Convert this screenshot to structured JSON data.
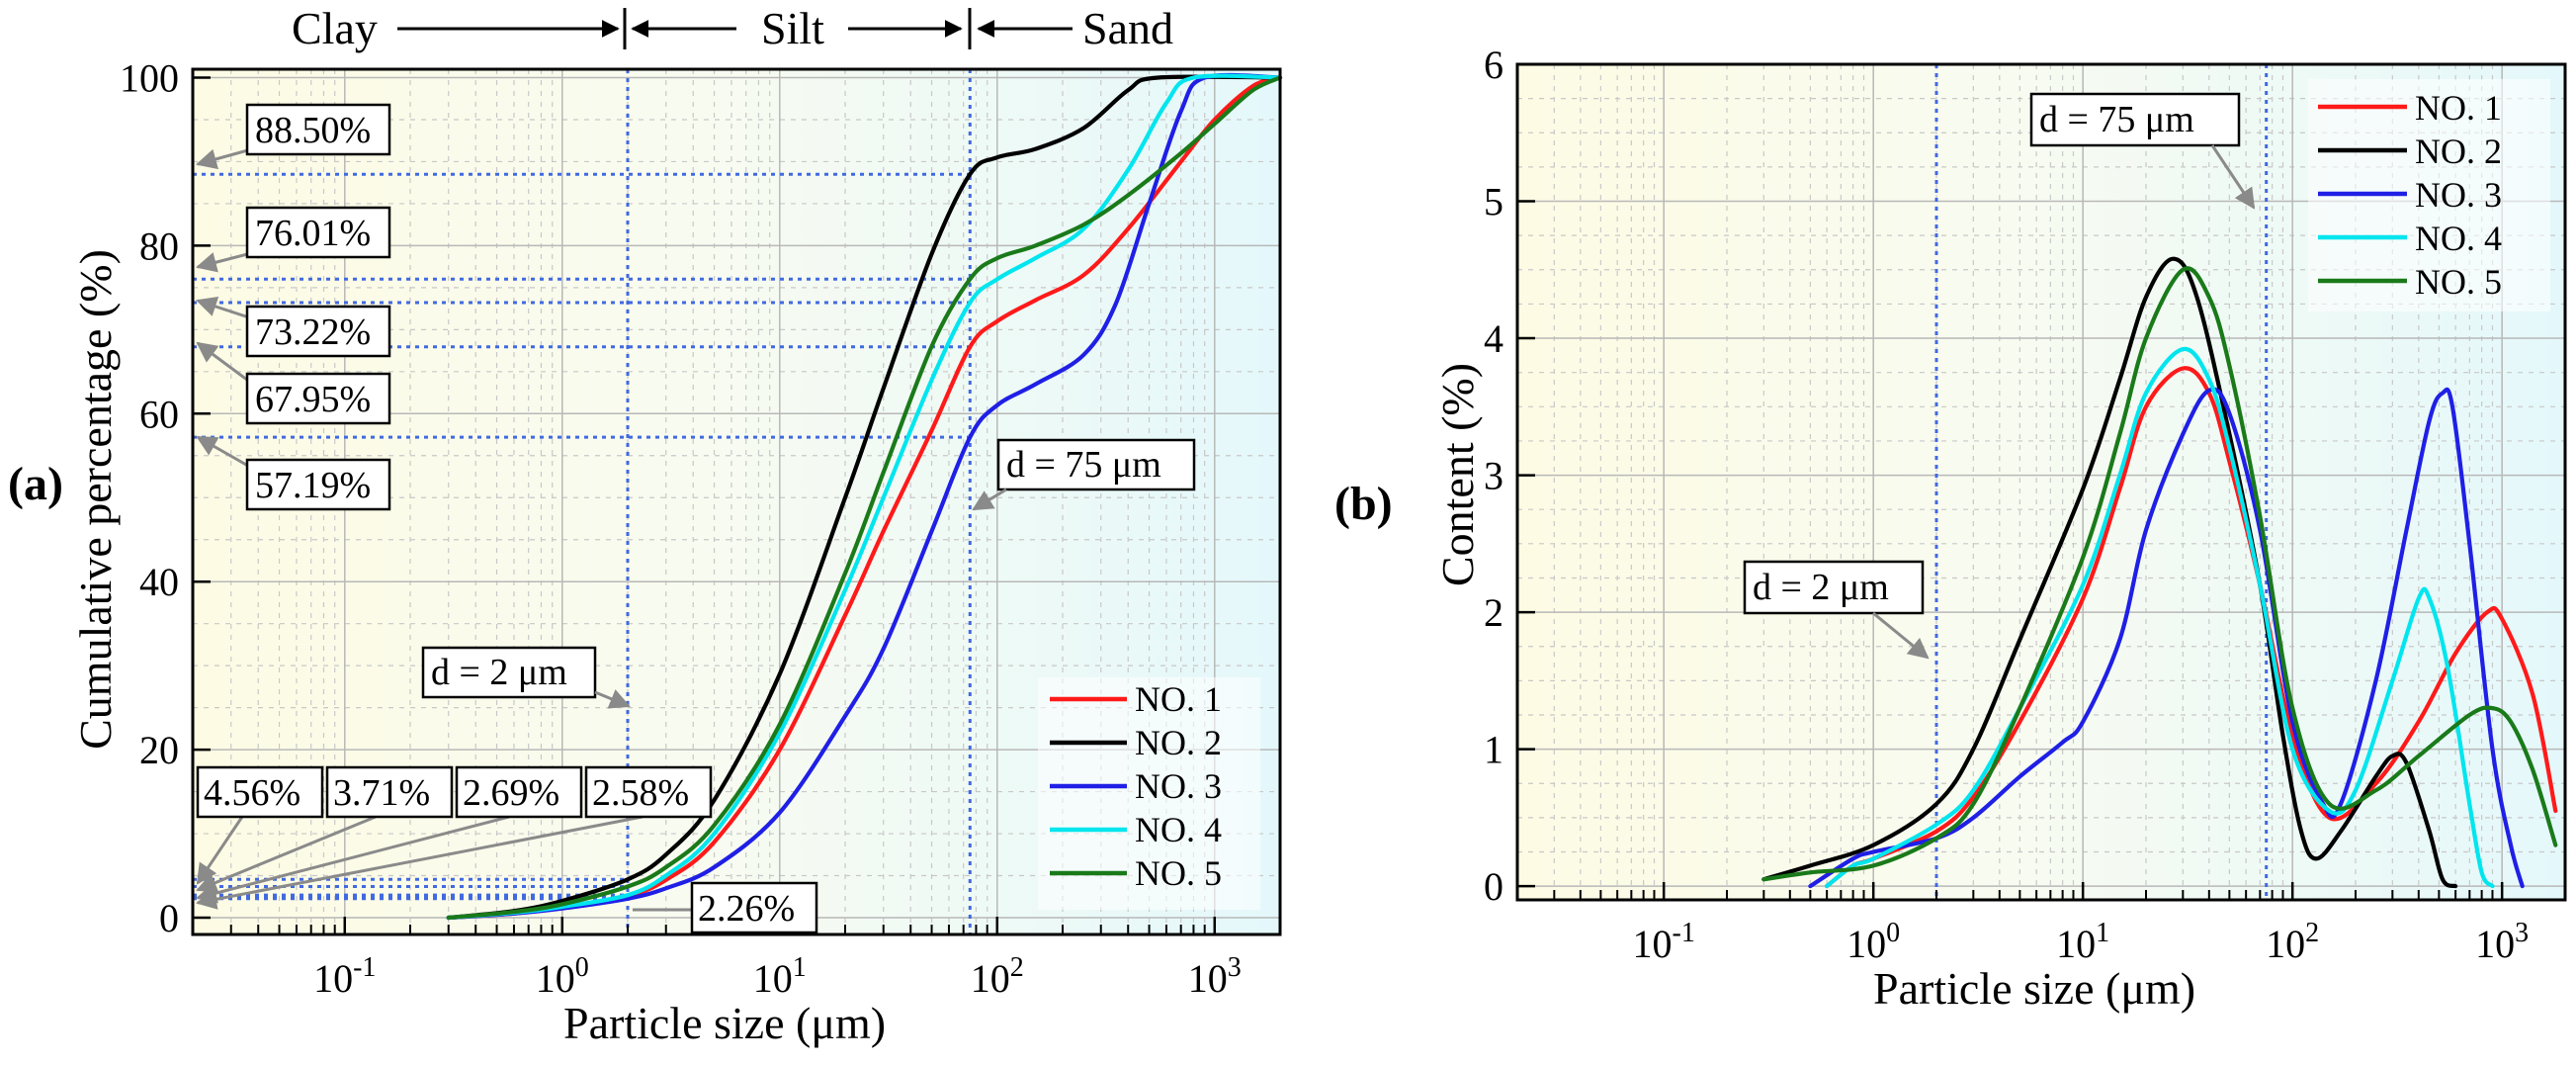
{
  "colors": {
    "no1": "#ff1a1a",
    "no2": "#000000",
    "no3": "#1f1fe6",
    "no4": "#00e5ee",
    "no5": "#1a7a1a",
    "reference": "#4169e1"
  },
  "chart_data": [
    {
      "panel": "(a)",
      "type": "line",
      "xscale": "log",
      "xlabel": "Particle size (μm)",
      "ylabel": "Cumulative percentage (%)",
      "xlim": [
        0.02,
        2000
      ],
      "ylim": [
        -2,
        101
      ],
      "x_ticks": [
        {
          "value": 0.1,
          "base": "10",
          "exp": "-1"
        },
        {
          "value": 1,
          "base": "10",
          "exp": "0"
        },
        {
          "value": 10,
          "base": "10",
          "exp": "1"
        },
        {
          "value": 100,
          "base": "10",
          "exp": "2"
        },
        {
          "value": 1000,
          "base": "10",
          "exp": "3"
        }
      ],
      "y_ticks": [
        "0",
        "20",
        "40",
        "60",
        "80",
        "100"
      ],
      "y_tick_values": [
        0,
        20,
        40,
        60,
        80,
        100
      ],
      "zones": [
        "Clay",
        "Silt",
        "Sand"
      ],
      "zone_bounds": [
        2,
        75
      ],
      "reference_lines": [
        {
          "x": 2,
          "label": "d = 2 μm"
        },
        {
          "x": 75,
          "label": "d = 75 μm"
        }
      ],
      "passing_at_75um": [
        {
          "series": "NO. 2",
          "value": 88.5,
          "label": "88.50%"
        },
        {
          "series": "NO. 5",
          "value": 76.01,
          "label": "76.01%"
        },
        {
          "series": "NO. 4",
          "value": 73.22,
          "label": "73.22%"
        },
        {
          "series": "NO. 1",
          "value": 67.95,
          "label": "67.95%"
        },
        {
          "series": "NO. 3",
          "value": 57.19,
          "label": "57.19%"
        }
      ],
      "passing_at_2um": [
        {
          "series": "NO. 2",
          "value": 4.56,
          "label": "4.56%"
        },
        {
          "series": "NO. 5",
          "value": 3.71,
          "label": "3.71%"
        },
        {
          "series": "NO. 4",
          "value": 2.69,
          "label": "2.69%"
        },
        {
          "series": "NO. 1",
          "value": 2.58,
          "label": "2.58%"
        },
        {
          "series": "NO. 3",
          "value": 2.26,
          "label": "2.26%"
        }
      ],
      "legend": [
        "NO. 1",
        "NO. 2",
        "NO. 3",
        "NO. 4",
        "NO. 5"
      ],
      "series": [
        {
          "name": "NO. 1",
          "color_key": "no1",
          "points": [
            [
              0.3,
              0
            ],
            [
              0.6,
              0.5
            ],
            [
              1,
              1.2
            ],
            [
              2,
              2.58
            ],
            [
              3,
              4.5
            ],
            [
              5,
              9
            ],
            [
              10,
              20
            ],
            [
              20,
              36
            ],
            [
              30,
              46
            ],
            [
              50,
              58
            ],
            [
              75,
              67.95
            ],
            [
              100,
              71
            ],
            [
              150,
              73.5
            ],
            [
              250,
              76.5
            ],
            [
              400,
              82
            ],
            [
              700,
              90
            ],
            [
              1000,
              95
            ],
            [
              1500,
              99
            ],
            [
              2000,
              100
            ]
          ]
        },
        {
          "name": "NO. 2",
          "color_key": "no2",
          "points": [
            [
              0.3,
              0
            ],
            [
              0.6,
              0.8
            ],
            [
              1,
              2
            ],
            [
              2,
              4.56
            ],
            [
              3,
              7.5
            ],
            [
              5,
              14
            ],
            [
              10,
              29
            ],
            [
              20,
              50
            ],
            [
              30,
              63
            ],
            [
              50,
              79
            ],
            [
              75,
              88.5
            ],
            [
              100,
              90.5
            ],
            [
              150,
              91.5
            ],
            [
              250,
              94
            ],
            [
              400,
              98.5
            ],
            [
              550,
              100
            ],
            [
              2000,
              100
            ]
          ]
        },
        {
          "name": "NO. 3",
          "color_key": "no3",
          "points": [
            [
              0.3,
              0
            ],
            [
              0.6,
              0.5
            ],
            [
              1,
              1.1
            ],
            [
              2,
              2.26
            ],
            [
              3,
              3.5
            ],
            [
              5,
              6
            ],
            [
              10,
              12.5
            ],
            [
              20,
              24
            ],
            [
              30,
              32
            ],
            [
              50,
              46
            ],
            [
              75,
              57.19
            ],
            [
              100,
              61
            ],
            [
              150,
              63.5
            ],
            [
              250,
              67
            ],
            [
              350,
              73
            ],
            [
              500,
              85
            ],
            [
              700,
              96
            ],
            [
              900,
              100
            ],
            [
              2000,
              100
            ]
          ]
        },
        {
          "name": "NO. 4",
          "color_key": "no4",
          "points": [
            [
              0.3,
              0
            ],
            [
              0.6,
              0.6
            ],
            [
              1,
              1.3
            ],
            [
              2,
              2.69
            ],
            [
              3,
              5
            ],
            [
              5,
              10
            ],
            [
              10,
              22
            ],
            [
              20,
              39
            ],
            [
              30,
              50
            ],
            [
              50,
              64
            ],
            [
              75,
              73.22
            ],
            [
              100,
              76
            ],
            [
              150,
              78.5
            ],
            [
              250,
              82
            ],
            [
              400,
              89
            ],
            [
              600,
              97
            ],
            [
              800,
              100
            ],
            [
              2000,
              100
            ]
          ]
        },
        {
          "name": "NO. 5",
          "color_key": "no5",
          "points": [
            [
              0.3,
              0
            ],
            [
              0.6,
              0.7
            ],
            [
              1,
              1.6
            ],
            [
              2,
              3.71
            ],
            [
              3,
              6
            ],
            [
              5,
              11
            ],
            [
              10,
              23
            ],
            [
              20,
              41
            ],
            [
              30,
              53
            ],
            [
              50,
              68
            ],
            [
              75,
              76.01
            ],
            [
              100,
              78.5
            ],
            [
              150,
              80
            ],
            [
              250,
              82.5
            ],
            [
              400,
              86
            ],
            [
              700,
              91
            ],
            [
              1000,
              94.5
            ],
            [
              1500,
              98.5
            ],
            [
              2000,
              100
            ]
          ]
        }
      ]
    },
    {
      "panel": "(b)",
      "type": "line",
      "xscale": "log",
      "xlabel": "Particle size (μm)",
      "ylabel": "Content (%)",
      "xlim": [
        0.02,
        2000
      ],
      "ylim": [
        -0.1,
        6
      ],
      "x_ticks": [
        {
          "value": 0.1,
          "base": "10",
          "exp": "-1"
        },
        {
          "value": 1,
          "base": "10",
          "exp": "0"
        },
        {
          "value": 10,
          "base": "10",
          "exp": "1"
        },
        {
          "value": 100,
          "base": "10",
          "exp": "2"
        },
        {
          "value": 1000,
          "base": "10",
          "exp": "3"
        }
      ],
      "y_ticks": [
        "0",
        "1",
        "2",
        "3",
        "4",
        "5",
        "6"
      ],
      "y_tick_values": [
        0,
        1,
        2,
        3,
        4,
        5,
        6
      ],
      "reference_lines": [
        {
          "x": 2,
          "label": "d = 2 μm"
        },
        {
          "x": 75,
          "label": "d = 75 μm"
        }
      ],
      "legend": [
        "NO. 1",
        "NO. 2",
        "NO. 3",
        "NO. 4",
        "NO. 5"
      ],
      "series": [
        {
          "name": "NO. 1",
          "color_key": "no1",
          "points": [
            [
              0.6,
              0
            ],
            [
              0.8,
              0.15
            ],
            [
              1,
              0.2
            ],
            [
              2,
              0.4
            ],
            [
              3,
              0.65
            ],
            [
              5,
              1.2
            ],
            [
              10,
              2.1
            ],
            [
              15,
              2.9
            ],
            [
              20,
              3.5
            ],
            [
              30,
              3.78
            ],
            [
              40,
              3.6
            ],
            [
              50,
              3.1
            ],
            [
              70,
              2.2
            ],
            [
              100,
              1.1
            ],
            [
              150,
              0.5
            ],
            [
              250,
              0.75
            ],
            [
              400,
              1.2
            ],
            [
              600,
              1.7
            ],
            [
              850,
              2.0
            ],
            [
              1000,
              1.95
            ],
            [
              1400,
              1.4
            ],
            [
              1800,
              0.55
            ]
          ]
        },
        {
          "name": "NO. 2",
          "color_key": "no2",
          "points": [
            [
              0.3,
              0.05
            ],
            [
              0.5,
              0.15
            ],
            [
              1,
              0.3
            ],
            [
              2,
              0.6
            ],
            [
              3,
              1.0
            ],
            [
              5,
              1.8
            ],
            [
              10,
              2.9
            ],
            [
              15,
              3.7
            ],
            [
              20,
              4.3
            ],
            [
              27,
              4.58
            ],
            [
              35,
              4.3
            ],
            [
              50,
              3.3
            ],
            [
              70,
              2.2
            ],
            [
              90,
              1.1
            ],
            [
              110,
              0.4
            ],
            [
              130,
              0.2
            ],
            [
              170,
              0.4
            ],
            [
              250,
              0.8
            ],
            [
              300,
              0.95
            ],
            [
              350,
              0.9
            ],
            [
              450,
              0.4
            ],
            [
              520,
              0.05
            ],
            [
              600,
              0
            ]
          ]
        },
        {
          "name": "NO. 3",
          "color_key": "no3",
          "points": [
            [
              0.5,
              0
            ],
            [
              0.8,
              0.2
            ],
            [
              1,
              0.25
            ],
            [
              2,
              0.35
            ],
            [
              3,
              0.5
            ],
            [
              5,
              0.8
            ],
            [
              8,
              1.05
            ],
            [
              10,
              1.2
            ],
            [
              15,
              1.8
            ],
            [
              20,
              2.6
            ],
            [
              30,
              3.3
            ],
            [
              40,
              3.62
            ],
            [
              50,
              3.45
            ],
            [
              70,
              2.6
            ],
            [
              100,
              1.2
            ],
            [
              140,
              0.6
            ],
            [
              170,
              0.6
            ],
            [
              250,
              1.5
            ],
            [
              350,
              2.6
            ],
            [
              450,
              3.4
            ],
            [
              520,
              3.6
            ],
            [
              580,
              3.5
            ],
            [
              700,
              2.5
            ],
            [
              900,
              1.0
            ],
            [
              1100,
              0.3
            ],
            [
              1250,
              0
            ]
          ]
        },
        {
          "name": "NO. 4",
          "color_key": "no4",
          "points": [
            [
              0.6,
              0
            ],
            [
              0.8,
              0.15
            ],
            [
              1,
              0.2
            ],
            [
              2,
              0.45
            ],
            [
              3,
              0.7
            ],
            [
              5,
              1.3
            ],
            [
              10,
              2.2
            ],
            [
              15,
              3.0
            ],
            [
              20,
              3.6
            ],
            [
              30,
              3.92
            ],
            [
              40,
              3.7
            ],
            [
              50,
              3.2
            ],
            [
              70,
              2.2
            ],
            [
              100,
              1.0
            ],
            [
              150,
              0.55
            ],
            [
              200,
              0.7
            ],
            [
              300,
              1.5
            ],
            [
              400,
              2.1
            ],
            [
              450,
              2.1
            ],
            [
              550,
              1.6
            ],
            [
              700,
              0.6
            ],
            [
              800,
              0.1
            ],
            [
              900,
              0
            ]
          ]
        },
        {
          "name": "NO. 5",
          "color_key": "no5",
          "points": [
            [
              0.3,
              0.05
            ],
            [
              0.5,
              0.1
            ],
            [
              1,
              0.15
            ],
            [
              2,
              0.35
            ],
            [
              3,
              0.6
            ],
            [
              5,
              1.3
            ],
            [
              10,
              2.4
            ],
            [
              15,
              3.3
            ],
            [
              20,
              4.0
            ],
            [
              30,
              4.5
            ],
            [
              40,
              4.3
            ],
            [
              50,
              3.8
            ],
            [
              70,
              2.7
            ],
            [
              100,
              1.3
            ],
            [
              150,
              0.6
            ],
            [
              250,
              0.7
            ],
            [
              400,
              0.95
            ],
            [
              700,
              1.25
            ],
            [
              900,
              1.3
            ],
            [
              1100,
              1.2
            ],
            [
              1400,
              0.85
            ],
            [
              1800,
              0.3
            ]
          ]
        }
      ]
    }
  ]
}
